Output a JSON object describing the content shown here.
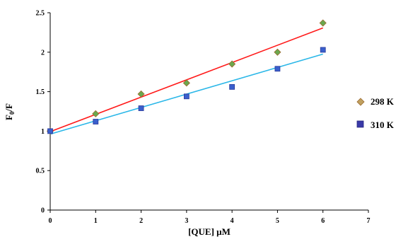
{
  "chart_data": {
    "type": "scatter",
    "xlabel": "[QUE] µM",
    "ylabel": "F",
    "ylabel_sub": "0",
    "ylabel_tail": "/F",
    "xlim": [
      0,
      7
    ],
    "ylim": [
      0,
      2.5
    ],
    "x_ticks": [
      0,
      1,
      2,
      3,
      4,
      5,
      6,
      7
    ],
    "y_ticks": [
      0,
      0.5,
      1,
      1.5,
      2,
      2.5
    ],
    "grid": false,
    "legend_position": "right",
    "series": [
      {
        "name": "298 K",
        "marker": "diamond",
        "marker_color": "#6aa84f",
        "marker_edge": "#9b6b2f",
        "line_color": "#ff1a1a",
        "x": [
          0,
          1,
          2,
          3,
          4,
          5,
          6
        ],
        "y": [
          1.0,
          1.22,
          1.47,
          1.61,
          1.85,
          2.0,
          2.37
        ],
        "fit": [
          0.993,
          0.219
        ]
      },
      {
        "name": "310 K",
        "marker": "square",
        "marker_color": "#3a5fcd",
        "marker_edge": "#2a3a9a",
        "line_color": "#2ab7e8",
        "x": [
          0,
          1,
          2,
          3,
          4,
          5,
          6
        ],
        "y": [
          1.0,
          1.12,
          1.29,
          1.44,
          1.56,
          1.79,
          2.03
        ],
        "fit": [
          0.962,
          0.169
        ]
      }
    ]
  }
}
